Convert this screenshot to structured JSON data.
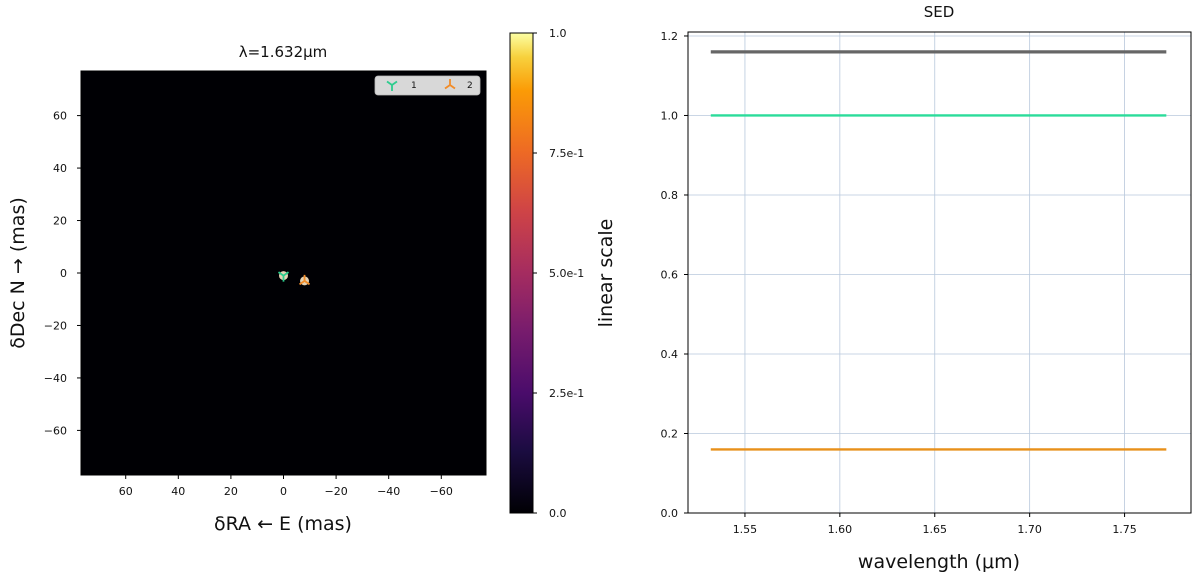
{
  "chart_data": [
    {
      "type": "heatmap",
      "title": "λ=1.632μm",
      "xlabel": "δRA ← E (mas)",
      "ylabel": "δDec N  → (mas)",
      "xlim": [
        77,
        -77
      ],
      "ylim": [
        -77,
        77
      ],
      "x_ticks": [
        "60",
        "40",
        "20",
        "0",
        "−20",
        "−40",
        "−60"
      ],
      "x_tick_values": [
        60,
        40,
        20,
        0,
        -20,
        -40,
        -60
      ],
      "y_ticks": [
        "60",
        "40",
        "20",
        "0",
        "−20",
        "−40",
        "−60"
      ],
      "y_tick_values": [
        60,
        40,
        20,
        0,
        -20,
        -40,
        -60
      ],
      "background_color": "#000004",
      "markers": [
        {
          "label": "1",
          "x": 0,
          "y": -1,
          "symbol": "tri-down",
          "color": "#2ecc8e"
        },
        {
          "label": "2",
          "x": -8,
          "y": -3,
          "symbol": "tri-up",
          "color": "#f28c28"
        }
      ],
      "legend": {
        "placement": "top-right",
        "entries": [
          "1",
          "2"
        ]
      },
      "colorbar": {
        "label": "linear scale",
        "range": [
          0,
          1
        ],
        "ticks": [
          "0.0",
          "2.5e-1",
          "5.0e-1",
          "7.5e-1",
          "1.0"
        ],
        "tick_values": [
          0,
          0.25,
          0.5,
          0.75,
          1.0
        ],
        "colormap": "inferno"
      }
    },
    {
      "type": "line",
      "title": "SED",
      "xlabel": "wavelength (μm)",
      "ylabel": "",
      "xlim": [
        1.52,
        1.785
      ],
      "ylim": [
        0.0,
        1.21
      ],
      "grid": true,
      "x_ticks": [
        "1.55",
        "1.60",
        "1.65",
        "1.70",
        "1.75"
      ],
      "x_tick_values": [
        1.55,
        1.6,
        1.65,
        1.7,
        1.75
      ],
      "y_ticks": [
        "0.0",
        "0.2",
        "0.4",
        "0.6",
        "0.8",
        "1.0",
        "1.2"
      ],
      "y_tick_values": [
        0.0,
        0.2,
        0.4,
        0.6,
        0.8,
        1.0,
        1.2
      ],
      "series": [
        {
          "x": [
            1.532,
            1.772
          ],
          "values": [
            1.16,
            1.16
          ],
          "color": "#666666"
        },
        {
          "x": [
            1.532,
            1.772
          ],
          "values": [
            1.0,
            1.0
          ],
          "color": "#2bdc9a"
        },
        {
          "x": [
            1.532,
            1.772
          ],
          "values": [
            0.16,
            0.16
          ],
          "color": "#e8901a"
        }
      ]
    }
  ]
}
